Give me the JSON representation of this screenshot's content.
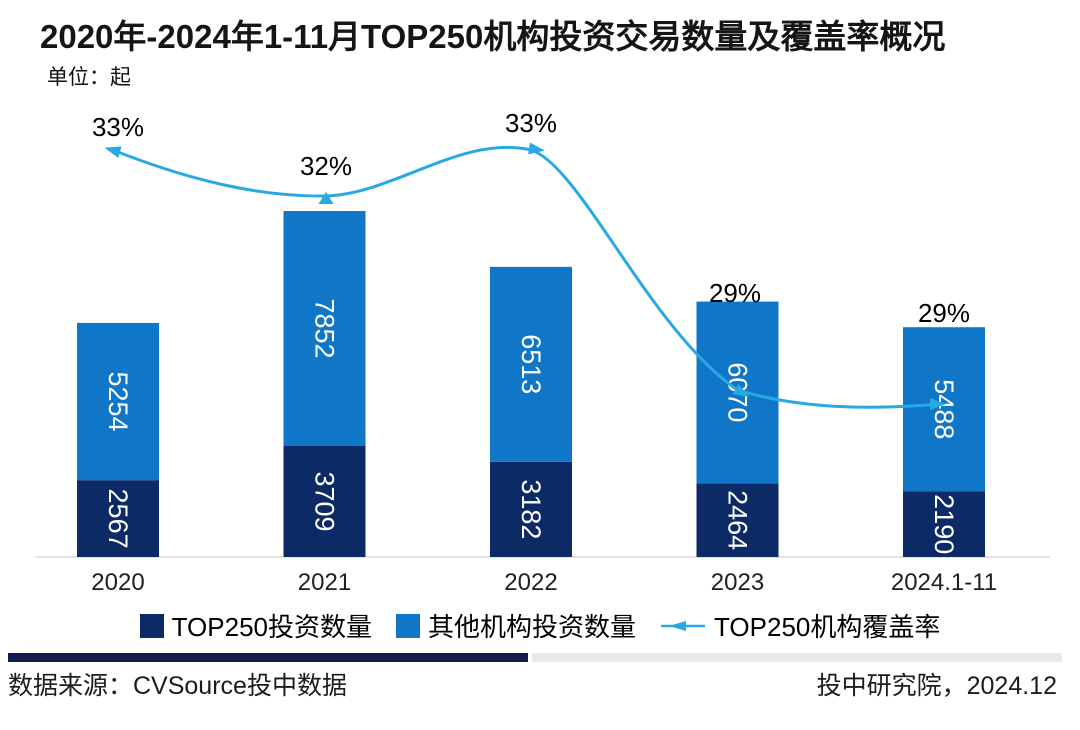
{
  "chart_data": {
    "type": "combo_stacked_bar_line",
    "title": "2020年-2024年1-11月TOP250机构投资交易数量及覆盖率概况",
    "unit_label": "单位：起",
    "categories": [
      "2020",
      "2021",
      "2022",
      "2023",
      "2024.1-11"
    ],
    "series": [
      {
        "name": "TOP250投资数量",
        "type": "bar",
        "stacked": true,
        "color": "#0C2A66",
        "values": [
          2567,
          3709,
          3182,
          2464,
          2190
        ]
      },
      {
        "name": "其他机构投资数量",
        "type": "bar",
        "stacked": true,
        "color": "#1076C8",
        "values": [
          5254,
          7852,
          6513,
          6070,
          5488
        ]
      },
      {
        "name": "TOP250机构覆盖率",
        "type": "line",
        "color": "#29A9E1",
        "values": [
          33,
          32,
          33,
          29,
          29
        ],
        "labels": [
          "33%",
          "32%",
          "33%",
          "29%",
          "29%"
        ]
      }
    ],
    "bar_label_color": "#FFFFFF",
    "bar_labels_rotated_90deg": true,
    "value_axis_visible": false,
    "gridlines": false,
    "axis_line_color": "#D8D8D8",
    "legend_position": "bottom"
  },
  "footer": {
    "divider_navy_color": "#131C4E",
    "divider_gray_color": "#E9E9E7",
    "source": "数据来源：CVSource投中数据",
    "credit": "投中研究院，2024.12"
  }
}
